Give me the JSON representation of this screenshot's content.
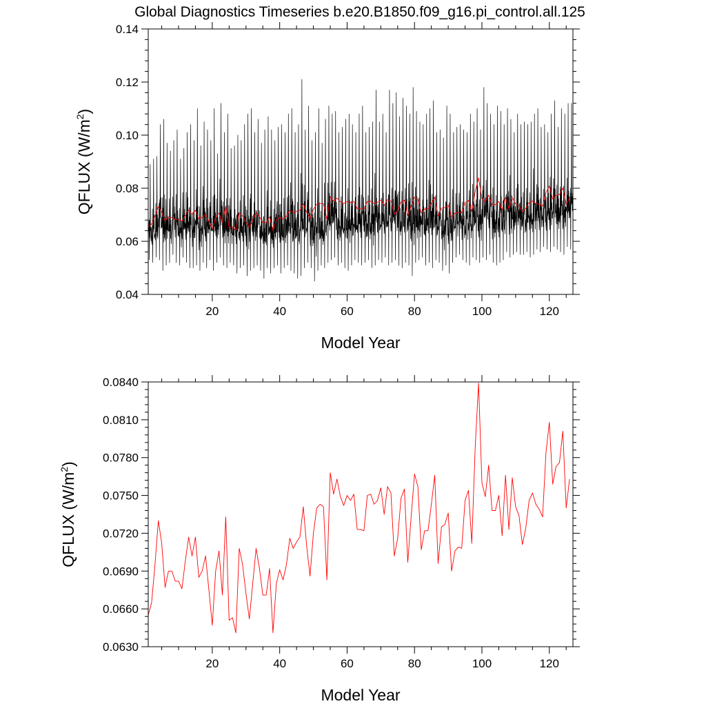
{
  "figure": {
    "title": "Global Diagnostics Timeseries b.e20.B1850.f09_g16.pi_control.all.125"
  },
  "colors": {
    "monthly": "#000000",
    "annual": "#ff0000"
  },
  "chart_data": [
    {
      "type": "line",
      "title": "Global Diagnostics Timeseries b.e20.B1850.f09_g16.pi_control.all.125",
      "xlabel": "Model Year",
      "ylabel": "QFLUX (W/m",
      "ylabel_sup": "2",
      "ylabel_tail": ")",
      "xlim": [
        1,
        127
      ],
      "ylim": [
        0.04,
        0.14
      ],
      "xticks": [
        20,
        40,
        60,
        80,
        100,
        120
      ],
      "xtick_labels": [
        "20",
        "40",
        "60",
        "80",
        "100",
        "120"
      ],
      "yticks": [
        0.04,
        0.06,
        0.08,
        0.1,
        0.12,
        0.14
      ],
      "ytick_labels": [
        "0.04",
        "0.06",
        "0.08",
        "0.10",
        "0.12",
        "0.14"
      ],
      "series": [
        {
          "color": "#000000",
          "resolution": "monthly",
          "seed": 7,
          "peak_year": [
            1,
            2,
            3,
            4,
            5,
            6,
            7,
            8,
            9,
            10,
            11,
            12,
            13,
            14,
            15,
            16,
            17,
            18,
            19,
            20,
            21,
            22,
            23,
            24,
            25,
            26,
            27,
            28,
            29,
            30,
            31,
            32,
            33,
            34,
            35,
            36,
            37,
            38,
            39,
            40,
            41,
            42,
            43,
            44,
            45,
            46,
            47,
            48,
            49,
            50,
            51,
            52,
            53,
            54,
            55,
            56,
            57,
            58,
            59,
            60,
            61,
            62,
            63,
            64,
            65,
            66,
            67,
            68,
            69,
            70,
            71,
            72,
            73,
            74,
            75,
            76,
            77,
            78,
            79,
            80,
            81,
            82,
            83,
            84,
            85,
            86,
            87,
            88,
            89,
            90,
            91,
            92,
            93,
            94,
            95,
            96,
            97,
            98,
            99,
            100,
            101,
            102,
            103,
            104,
            105,
            106,
            107,
            108,
            109,
            110,
            111,
            112,
            113,
            114,
            115,
            116,
            117,
            118,
            119,
            120,
            121,
            122,
            123,
            124,
            125,
            126
          ],
          "peak": [
            0.089,
            0.091,
            0.092,
            0.104,
            0.106,
            0.097,
            0.094,
            0.098,
            0.102,
            0.091,
            0.095,
            0.101,
            0.104,
            0.098,
            0.11,
            0.096,
            0.105,
            0.102,
            0.098,
            0.11,
            0.093,
            0.112,
            0.101,
            0.108,
            0.095,
            0.096,
            0.1,
            0.098,
            0.104,
            0.108,
            0.11,
            0.101,
            0.106,
            0.097,
            0.102,
            0.107,
            0.102,
            0.098,
            0.103,
            0.104,
            0.101,
            0.108,
            0.11,
            0.101,
            0.104,
            0.121,
            0.102,
            0.111,
            0.098,
            0.101,
            0.11,
            0.097,
            0.106,
            0.111,
            0.108,
            0.109,
            0.101,
            0.103,
            0.106,
            0.108,
            0.104,
            0.101,
            0.108,
            0.111,
            0.101,
            0.103,
            0.105,
            0.117,
            0.105,
            0.108,
            0.101,
            0.117,
            0.112,
            0.116,
            0.107,
            0.114,
            0.111,
            0.108,
            0.118,
            0.109,
            0.105,
            0.104,
            0.108,
            0.11,
            0.113,
            0.101,
            0.102,
            0.099,
            0.111,
            0.108,
            0.101,
            0.103,
            0.104,
            0.102,
            0.101,
            0.108,
            0.105,
            0.11,
            0.102,
            0.118,
            0.112,
            0.108,
            0.104,
            0.111,
            0.109,
            0.104,
            0.11,
            0.106,
            0.101,
            0.108,
            0.104,
            0.105,
            0.104,
            0.105,
            0.108,
            0.11,
            0.103,
            0.104,
            0.101,
            0.108,
            0.113,
            0.103,
            0.11,
            0.108,
            0.112,
            0.112
          ],
          "trough": [
            0.053,
            0.052,
            0.054,
            0.053,
            0.049,
            0.051,
            0.052,
            0.055,
            0.052,
            0.051,
            0.054,
            0.052,
            0.05,
            0.05,
            0.051,
            0.049,
            0.052,
            0.05,
            0.053,
            0.049,
            0.052,
            0.054,
            0.051,
            0.05,
            0.052,
            0.051,
            0.048,
            0.05,
            0.051,
            0.047,
            0.049,
            0.05,
            0.051,
            0.049,
            0.046,
            0.05,
            0.048,
            0.05,
            0.051,
            0.048,
            0.05,
            0.051,
            0.049,
            0.048,
            0.046,
            0.047,
            0.05,
            0.052,
            0.05,
            0.045,
            0.049,
            0.051,
            0.05,
            0.052,
            0.053,
            0.054,
            0.051,
            0.052,
            0.05,
            0.049,
            0.051,
            0.053,
            0.052,
            0.051,
            0.052,
            0.053,
            0.05,
            0.051,
            0.053,
            0.052,
            0.054,
            0.051,
            0.052,
            0.053,
            0.051,
            0.05,
            0.052,
            0.051,
            0.047,
            0.052,
            0.053,
            0.054,
            0.051,
            0.052,
            0.05,
            0.053,
            0.052,
            0.049,
            0.051,
            0.048,
            0.052,
            0.054,
            0.055,
            0.053,
            0.052,
            0.051,
            0.054,
            0.053,
            0.052,
            0.054,
            0.053,
            0.055,
            0.052,
            0.051,
            0.052,
            0.053,
            0.056,
            0.054,
            0.055,
            0.056,
            0.055,
            0.055,
            0.056,
            0.054,
            0.055,
            0.057,
            0.056,
            0.058,
            0.057,
            0.056,
            0.058,
            0.057,
            0.056,
            0.055,
            0.058,
            0.057
          ]
        },
        {
          "color": "#ff0000",
          "resolution": "annual",
          "x": [
            1,
            2,
            3,
            4,
            5,
            6,
            7,
            8,
            9,
            10,
            11,
            12,
            13,
            14,
            15,
            16,
            17,
            18,
            19,
            20,
            21,
            22,
            23,
            24,
            25,
            26,
            27,
            28,
            29,
            30,
            31,
            32,
            33,
            34,
            35,
            36,
            37,
            38,
            39,
            40,
            41,
            42,
            43,
            44,
            45,
            46,
            47,
            48,
            49,
            50,
            51,
            52,
            53,
            54,
            55,
            56,
            57,
            58,
            59,
            60,
            61,
            62,
            63,
            64,
            65,
            66,
            67,
            68,
            69,
            70,
            71,
            72,
            73,
            74,
            75,
            76,
            77,
            78,
            79,
            80,
            81,
            82,
            83,
            84,
            85,
            86,
            87,
            88,
            89,
            90,
            91,
            92,
            93,
            94,
            95,
            96,
            97,
            98,
            99,
            100,
            101,
            102,
            103,
            104,
            105,
            106,
            107,
            108,
            109,
            110,
            111,
            112,
            113,
            114,
            115,
            116,
            117,
            118,
            119,
            120,
            121,
            122,
            123,
            124,
            125,
            126
          ],
          "values": [
            0.0655,
            0.0665,
            0.0695,
            0.073,
            0.0712,
            0.0677,
            0.069,
            0.069,
            0.0682,
            0.0682,
            0.0676,
            0.0698,
            0.0717,
            0.0702,
            0.0717,
            0.0685,
            0.069,
            0.0702,
            0.0675,
            0.0647,
            0.069,
            0.0706,
            0.0671,
            0.0733,
            0.0651,
            0.0653,
            0.0641,
            0.0708,
            0.0695,
            0.0672,
            0.0652,
            0.068,
            0.0708,
            0.0692,
            0.0671,
            0.0671,
            0.0692,
            0.0641,
            0.068,
            0.0691,
            0.0683,
            0.0695,
            0.0716,
            0.0708,
            0.0713,
            0.0717,
            0.0741,
            0.071,
            0.0686,
            0.072,
            0.074,
            0.0743,
            0.0741,
            0.0683,
            0.0768,
            0.0751,
            0.0763,
            0.0749,
            0.0742,
            0.075,
            0.0746,
            0.0751,
            0.0723,
            0.0723,
            0.0722,
            0.075,
            0.0751,
            0.0743,
            0.0746,
            0.0756,
            0.0735,
            0.0757,
            0.0752,
            0.0702,
            0.0716,
            0.0748,
            0.0755,
            0.0697,
            0.0733,
            0.0767,
            0.0757,
            0.0707,
            0.0722,
            0.0722,
            0.0743,
            0.0766,
            0.0696,
            0.0725,
            0.0727,
            0.0736,
            0.069,
            0.0706,
            0.0709,
            0.0708,
            0.0746,
            0.0754,
            0.0712,
            0.0788,
            0.0839,
            0.076,
            0.0749,
            0.0774,
            0.0738,
            0.0738,
            0.075,
            0.0718,
            0.0766,
            0.0723,
            0.0764,
            0.0741,
            0.0734,
            0.0711,
            0.0724,
            0.0746,
            0.0752,
            0.0743,
            0.0739,
            0.0733,
            0.0784,
            0.0808,
            0.0759,
            0.0773,
            0.0776,
            0.0801,
            0.074,
            0.0763
          ]
        }
      ]
    },
    {
      "type": "line",
      "title": "",
      "xlabel": "Model Year",
      "ylabel": "QFLUX (W/m",
      "ylabel_sup": "2",
      "ylabel_tail": ")",
      "xlim": [
        1,
        127
      ],
      "ylim": [
        0.063,
        0.084
      ],
      "xticks": [
        20,
        40,
        60,
        80,
        100,
        120
      ],
      "xtick_labels": [
        "20",
        "40",
        "60",
        "80",
        "100",
        "120"
      ],
      "yticks": [
        0.063,
        0.066,
        0.069,
        0.072,
        0.075,
        0.078,
        0.081,
        0.084
      ],
      "ytick_labels": [
        "0.0630",
        "0.0660",
        "0.0690",
        "0.0720",
        "0.0750",
        "0.0780",
        "0.0810",
        "0.0840"
      ],
      "series": [
        {
          "color": "#ff0000",
          "resolution": "annual",
          "x": [
            1,
            2,
            3,
            4,
            5,
            6,
            7,
            8,
            9,
            10,
            11,
            12,
            13,
            14,
            15,
            16,
            17,
            18,
            19,
            20,
            21,
            22,
            23,
            24,
            25,
            26,
            27,
            28,
            29,
            30,
            31,
            32,
            33,
            34,
            35,
            36,
            37,
            38,
            39,
            40,
            41,
            42,
            43,
            44,
            45,
            46,
            47,
            48,
            49,
            50,
            51,
            52,
            53,
            54,
            55,
            56,
            57,
            58,
            59,
            60,
            61,
            62,
            63,
            64,
            65,
            66,
            67,
            68,
            69,
            70,
            71,
            72,
            73,
            74,
            75,
            76,
            77,
            78,
            79,
            80,
            81,
            82,
            83,
            84,
            85,
            86,
            87,
            88,
            89,
            90,
            91,
            92,
            93,
            94,
            95,
            96,
            97,
            98,
            99,
            100,
            101,
            102,
            103,
            104,
            105,
            106,
            107,
            108,
            109,
            110,
            111,
            112,
            113,
            114,
            115,
            116,
            117,
            118,
            119,
            120,
            121,
            122,
            123,
            124,
            125,
            126
          ],
          "values": [
            0.0655,
            0.0665,
            0.0695,
            0.073,
            0.0712,
            0.0677,
            0.069,
            0.069,
            0.0682,
            0.0682,
            0.0676,
            0.0698,
            0.0717,
            0.0702,
            0.0717,
            0.0685,
            0.069,
            0.0702,
            0.0675,
            0.0647,
            0.069,
            0.0706,
            0.0671,
            0.0733,
            0.0651,
            0.0653,
            0.0641,
            0.0708,
            0.0695,
            0.0672,
            0.0652,
            0.068,
            0.0708,
            0.0692,
            0.0671,
            0.0671,
            0.0692,
            0.0641,
            0.068,
            0.0691,
            0.0683,
            0.0695,
            0.0716,
            0.0708,
            0.0713,
            0.0717,
            0.0741,
            0.071,
            0.0686,
            0.072,
            0.074,
            0.0743,
            0.0741,
            0.0683,
            0.0768,
            0.0751,
            0.0763,
            0.0749,
            0.0742,
            0.075,
            0.0746,
            0.0751,
            0.0723,
            0.0723,
            0.0722,
            0.075,
            0.0751,
            0.0743,
            0.0746,
            0.0756,
            0.0735,
            0.0757,
            0.0752,
            0.0702,
            0.0716,
            0.0748,
            0.0755,
            0.0697,
            0.0733,
            0.0767,
            0.0757,
            0.0707,
            0.0722,
            0.0722,
            0.0743,
            0.0766,
            0.0696,
            0.0725,
            0.0727,
            0.0736,
            0.069,
            0.0706,
            0.0709,
            0.0708,
            0.0746,
            0.0754,
            0.0712,
            0.0788,
            0.0839,
            0.076,
            0.0749,
            0.0774,
            0.0738,
            0.0738,
            0.075,
            0.0718,
            0.0766,
            0.0723,
            0.0764,
            0.0741,
            0.0734,
            0.0711,
            0.0724,
            0.0746,
            0.0752,
            0.0743,
            0.0739,
            0.0733,
            0.0784,
            0.0808,
            0.0759,
            0.0773,
            0.0776,
            0.0801,
            0.074,
            0.0763
          ]
        }
      ]
    }
  ]
}
